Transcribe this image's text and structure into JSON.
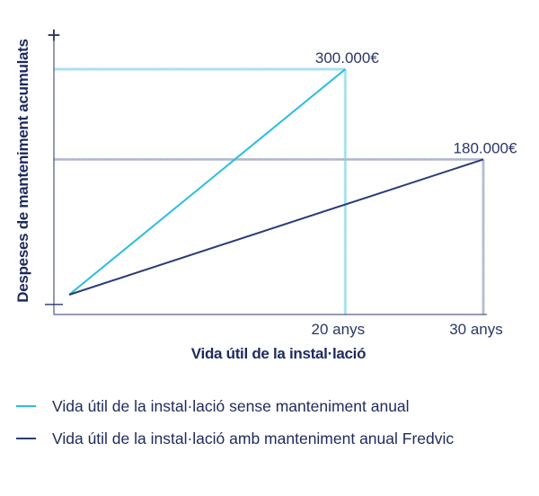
{
  "chart_data": {
    "type": "line",
    "ylabel": "Despeses de manteniment acumulats",
    "xlabel": "Vida útil de la instal·lació",
    "y_axis_top_marker": "+",
    "y_axis_bottom_marker": "—",
    "xlim": [
      0,
      30
    ],
    "ylim": [
      0,
      350000
    ],
    "x_ticks": [
      {
        "value": 20,
        "label": "20 anys"
      },
      {
        "value": 30,
        "label": "30 anys"
      }
    ],
    "series": [
      {
        "name": "Vida útil de la instal·lació sense manteniment anual",
        "color": "#2bbde0",
        "x": [
          0,
          20
        ],
        "y": [
          0,
          300000
        ],
        "end_label": "300.000€"
      },
      {
        "name": "Vida útil de la instal·lació amb manteniment anual Fredvic",
        "color": "#2b3b78",
        "x": [
          0,
          30
        ],
        "y": [
          0,
          180000
        ],
        "end_label": "180.000€"
      }
    ],
    "guide_lines": true,
    "legend_position": "bottom"
  }
}
